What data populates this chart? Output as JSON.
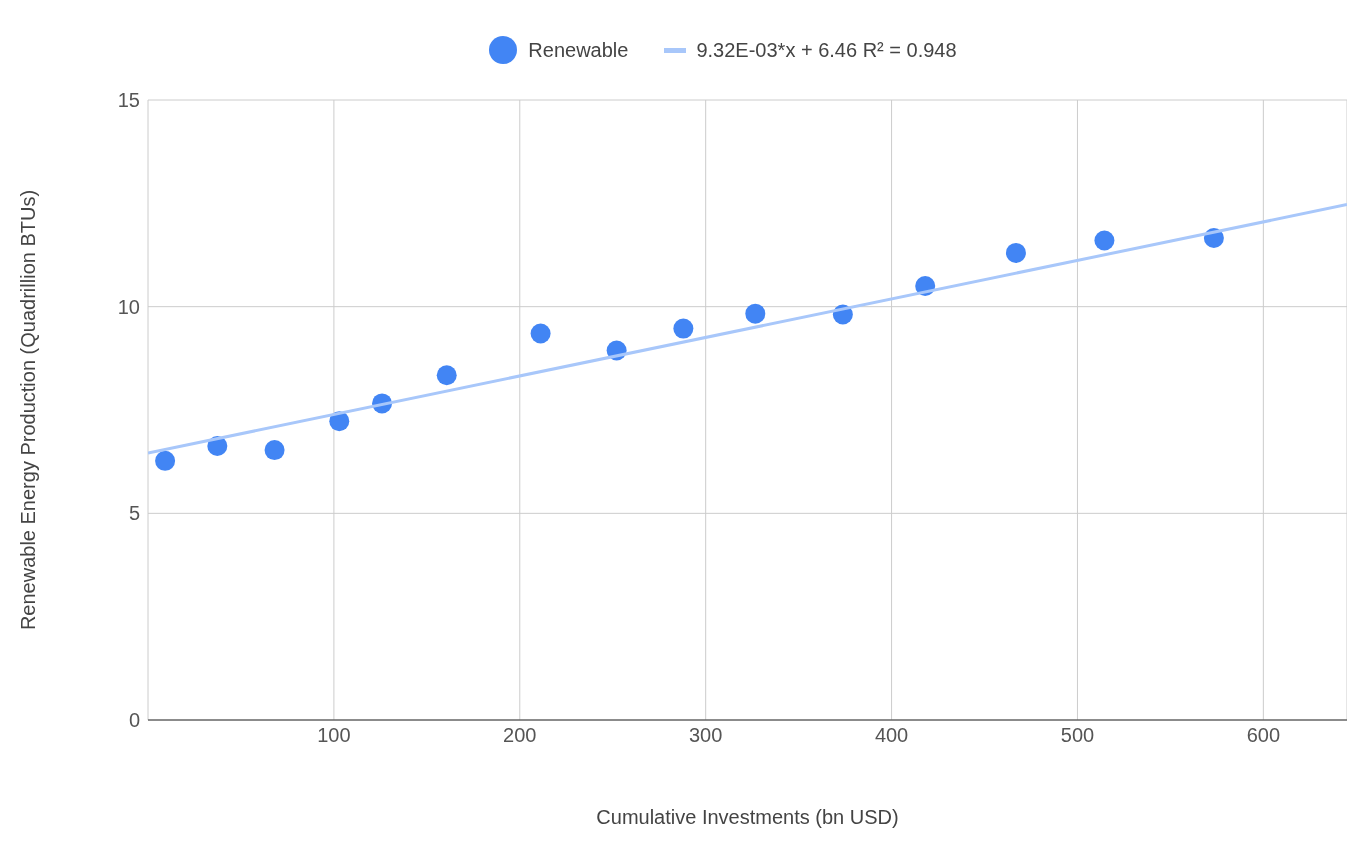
{
  "chart_data": {
    "type": "scatter",
    "xlabel": "Cumulative Investments (bn USD)",
    "ylabel": "Renewable Energy Production (Quadrillion BTUs)",
    "xlim": [
      0,
      645
    ],
    "ylim": [
      0,
      15
    ],
    "xticks": [
      100,
      200,
      300,
      400,
      500,
      600
    ],
    "yticks": [
      0,
      5,
      10,
      15
    ],
    "grid": true,
    "legend": "top",
    "series": [
      {
        "name": "Renewable",
        "marker": "circle",
        "color": "#4285f4",
        "x": [
          9.2,
          37.3,
          68.1,
          102.9,
          125.9,
          160.7,
          211.2,
          252.1,
          288,
          326.7,
          373.8,
          418.1,
          466.9,
          514.5,
          573.4
        ],
        "values": [
          6.27,
          6.63,
          6.53,
          7.23,
          7.66,
          8.34,
          9.35,
          8.94,
          9.47,
          9.83,
          9.81,
          10.5,
          11.3,
          11.6,
          11.66
        ]
      },
      {
        "name": "9.32E-03*x + 6.46 R² = 0.948",
        "type": "line",
        "marker": "none",
        "color": "#a8c7fa",
        "x": [
          0,
          645
        ],
        "values": [
          6.46,
          12.47
        ]
      }
    ]
  }
}
